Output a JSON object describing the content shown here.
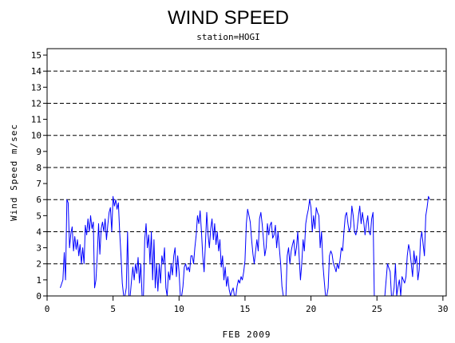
{
  "chart_data": {
    "type": "line",
    "title": "WIND SPEED",
    "subtitle": "station=HOGI",
    "xlabel": "FEB 2009",
    "ylabel": "Wind Speed m/sec",
    "xlim": [
      0,
      30.25
    ],
    "ylim": [
      0,
      15.4
    ],
    "xticks": [
      0,
      5,
      10,
      15,
      20,
      25,
      30
    ],
    "yticks": [
      0,
      1,
      2,
      3,
      4,
      5,
      6,
      7,
      8,
      9,
      10,
      11,
      12,
      13,
      14,
      15
    ],
    "reference_lines": [
      0,
      2,
      4,
      6,
      8,
      10,
      12,
      14
    ],
    "grid": "dashed horizontal reference lines",
    "line_color": "#0000ff",
    "series": [
      {
        "x": [
          1.0,
          1.2,
          1.3,
          1.4,
          1.5,
          1.6,
          1.7,
          1.8,
          1.9,
          2.0,
          2.1,
          2.2,
          2.3,
          2.4,
          2.5,
          2.6,
          2.7,
          2.8,
          2.9,
          3.0,
          3.1,
          3.2,
          3.3,
          3.4,
          3.5,
          3.6,
          3.7,
          3.8,
          3.9,
          4.0,
          4.1,
          4.2,
          4.3,
          4.4,
          4.5,
          4.6,
          4.7,
          4.8,
          4.9,
          5.0,
          5.1,
          5.2,
          5.3,
          5.4,
          5.5,
          5.6,
          5.7,
          5.8,
          5.9,
          6.0,
          6.1,
          6.2,
          6.3,
          6.4,
          6.5,
          6.6,
          6.7,
          6.8,
          6.9,
          7.0,
          7.1,
          7.2,
          7.3,
          7.4,
          7.5,
          7.6,
          7.7,
          7.8,
          7.9,
          8.0,
          8.1,
          8.2,
          8.3,
          8.4,
          8.5,
          8.6,
          8.7,
          8.8,
          8.9,
          9.0,
          9.1,
          9.2,
          9.3,
          9.4,
          9.5,
          9.6,
          9.7,
          9.8,
          9.9,
          10.0,
          10.1,
          10.2,
          10.3,
          10.4,
          10.5,
          10.6,
          10.7,
          10.8,
          10.9,
          11.0,
          11.1,
          11.2,
          11.3,
          11.4,
          11.5,
          11.6,
          11.7,
          11.8,
          11.9,
          12.0,
          12.1,
          12.2,
          12.3,
          12.4,
          12.5,
          12.6,
          12.7,
          12.8,
          12.9,
          13.0,
          13.1,
          13.2,
          13.3,
          13.4,
          13.5,
          13.6,
          13.7,
          13.8,
          13.9,
          14.0,
          14.1,
          14.2,
          14.3,
          14.4,
          14.5,
          14.6,
          14.7,
          14.8,
          14.9,
          15.0,
          15.1,
          15.2,
          15.3,
          15.4,
          15.5,
          15.6,
          15.7,
          15.8,
          15.9,
          16.0,
          16.1,
          16.2,
          16.3,
          16.4,
          16.5,
          16.6,
          16.7,
          16.8,
          16.9,
          17.0,
          17.1,
          17.2,
          17.3,
          17.4,
          17.5,
          17.6,
          17.7,
          17.8,
          17.9,
          18.0,
          18.1,
          18.2,
          18.3,
          18.4,
          18.5,
          18.6,
          18.7,
          18.8,
          18.9,
          19.0,
          19.1,
          19.2,
          19.3,
          19.4,
          19.5,
          19.6,
          19.7,
          19.8,
          19.9,
          20.0,
          20.1,
          20.2,
          20.3,
          20.4,
          20.5,
          20.6,
          20.7,
          20.8,
          20.9,
          21.0,
          21.1,
          21.2,
          21.3,
          21.4,
          21.5,
          21.6,
          21.7,
          21.8,
          21.9,
          22.0,
          22.1,
          22.2,
          22.3,
          22.4,
          22.5,
          22.6,
          22.7,
          22.8,
          22.9,
          23.0,
          23.1,
          23.2,
          23.3,
          23.4,
          23.5,
          23.6,
          23.7,
          23.8,
          23.9,
          24.0,
          24.1,
          24.2,
          24.3,
          24.4,
          24.5,
          24.6,
          24.7,
          24.8,
          24.9,
          25.0,
          25.2,
          25.4,
          25.6,
          25.8,
          26.0,
          26.1,
          26.2,
          26.3,
          26.4,
          26.5,
          26.6,
          26.7,
          26.8,
          26.9,
          27.0,
          27.1,
          27.2,
          27.3,
          27.4,
          27.5,
          27.6,
          27.7,
          27.8,
          27.9,
          28.0,
          28.1,
          28.2,
          28.3,
          28.4,
          28.5,
          28.6,
          28.7,
          28.8,
          28.9,
          29.0
        ],
        "values": [
          0.5,
          1.0,
          2.7,
          1.0,
          6.0,
          5.8,
          3.0,
          3.9,
          4.3,
          2.8,
          3.7,
          2.9,
          3.5,
          2.5,
          3.2,
          2.0,
          3.0,
          2.0,
          4.4,
          3.8,
          4.8,
          4.0,
          5.0,
          4.2,
          4.6,
          0.5,
          1.0,
          2.5,
          4.5,
          2.6,
          4.2,
          4.6,
          4.0,
          4.8,
          3.5,
          4.4,
          5.2,
          5.5,
          4.0,
          6.2,
          5.6,
          6.0,
          5.4,
          5.8,
          4.0,
          2.5,
          0.8,
          0.0,
          0.0,
          0.5,
          4.0,
          0.0,
          0.0,
          1.0,
          1.8,
          1.0,
          2.0,
          1.4,
          2.4,
          0.8,
          2.0,
          0.0,
          0.0,
          3.5,
          4.5,
          3.0,
          3.8,
          2.0,
          4.0,
          1.0,
          3.5,
          0.5,
          2.0,
          0.3,
          2.0,
          0.8,
          2.5,
          2.0,
          3.0,
          0.5,
          0.0,
          1.5,
          1.0,
          2.0,
          1.3,
          2.5,
          3.0,
          1.2,
          2.5,
          1.5,
          0.0,
          0.0,
          0.6,
          1.8,
          2.0,
          1.6,
          1.8,
          1.5,
          2.5,
          2.5,
          2.0,
          3.0,
          3.8,
          5.0,
          4.5,
          5.3,
          4.0,
          2.5,
          1.5,
          3.2,
          5.2,
          3.8,
          3.0,
          4.2,
          4.8,
          3.5,
          4.5,
          3.2,
          4.0,
          2.8,
          3.5,
          1.8,
          2.5,
          1.0,
          1.8,
          0.6,
          1.2,
          0.4,
          0.0,
          0.3,
          0.5,
          0.0,
          0.0,
          0.6,
          1.0,
          0.8,
          1.2,
          1.0,
          1.5,
          2.2,
          4.5,
          5.4,
          5.0,
          4.6,
          3.5,
          2.6,
          2.0,
          2.8,
          3.5,
          2.8,
          4.8,
          5.2,
          4.5,
          3.5,
          2.5,
          3.0,
          4.5,
          3.8,
          4.4,
          4.6,
          3.6,
          3.8,
          4.4,
          3.0,
          4.0,
          3.0,
          2.0,
          0.6,
          0.0,
          0.0,
          0.0,
          2.5,
          3.0,
          2.0,
          2.8,
          3.2,
          3.5,
          2.5,
          3.0,
          4.0,
          2.5,
          1.0,
          2.0,
          3.5,
          2.8,
          4.5,
          5.0,
          5.4,
          6.0,
          5.5,
          4.0,
          5.0,
          4.2,
          5.5,
          5.2,
          5.0,
          3.0,
          4.0,
          2.0,
          1.0,
          0.0,
          0.0,
          0.5,
          2.5,
          2.8,
          2.6,
          2.0,
          1.8,
          1.5,
          2.0,
          1.7,
          2.2,
          3.0,
          2.8,
          4.0,
          5.0,
          5.2,
          4.5,
          4.0,
          4.3,
          5.6,
          5.0,
          4.0,
          3.8,
          4.2,
          5.0,
          5.6,
          4.5,
          5.2,
          4.6,
          3.8,
          4.5,
          5.0,
          4.0,
          3.8,
          4.8,
          5.2,
          0.0,
          0.0,
          0.0,
          0.0,
          0.0,
          0.0,
          2.0,
          1.5,
          0.0,
          0.0,
          0.5,
          2.0,
          0.0,
          0.6,
          1.0,
          0.0,
          1.2,
          1.0,
          0.8,
          1.2,
          2.5,
          3.2,
          2.8,
          2.0,
          1.2,
          2.8,
          2.0,
          2.5,
          1.0,
          1.6,
          3.5,
          4.0,
          3.2,
          2.5,
          5.0,
          5.5,
          6.2,
          6.0
        ]
      }
    ]
  }
}
